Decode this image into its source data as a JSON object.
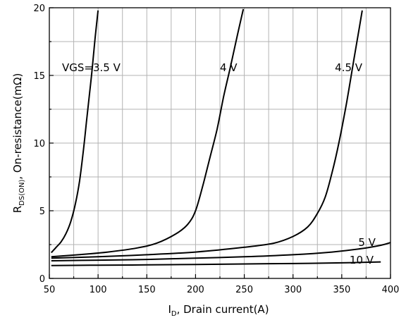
{
  "chart_data": {
    "type": "line",
    "xlabel_main": "I",
    "xlabel_sub": "D",
    "xlabel_rest": ", Drain current(A)",
    "ylabel_main": "R",
    "ylabel_sub": "DS(ON)",
    "ylabel_rest": ", On-resistance(mΩ)",
    "xlim": [
      50,
      400
    ],
    "ylim": [
      0,
      20
    ],
    "xticks": [
      50,
      100,
      150,
      200,
      250,
      300,
      350,
      400
    ],
    "yticks": [
      0,
      5,
      10,
      15,
      20
    ],
    "grid": true,
    "series": [
      {
        "name": "VGS=3.5 V",
        "x": [
          52,
          57,
          62,
          67,
          72,
          77,
          81,
          85,
          88,
          91,
          94,
          97,
          100
        ],
        "y": [
          1.9,
          2.3,
          2.7,
          3.3,
          4.2,
          5.6,
          7.2,
          9.5,
          11.5,
          13.5,
          15.5,
          17.8,
          19.8
        ]
      },
      {
        "name": "4 V",
        "x": [
          52,
          80,
          110,
          140,
          160,
          180,
          192,
          200,
          208,
          215,
          222,
          229,
          236,
          243,
          249
        ],
        "y": [
          1.6,
          1.75,
          1.95,
          2.25,
          2.6,
          3.3,
          4.0,
          5.0,
          7.0,
          9.0,
          11.0,
          13.5,
          15.7,
          18.0,
          19.9
        ]
      },
      {
        "name": "4.5 V",
        "x": [
          52,
          100,
          150,
          200,
          250,
          280,
          300,
          315,
          325,
          333,
          340,
          347,
          355,
          362,
          368,
          371
        ],
        "y": [
          1.5,
          1.6,
          1.75,
          1.95,
          2.3,
          2.6,
          3.1,
          3.8,
          4.8,
          6.0,
          7.8,
          10.0,
          13.0,
          16.0,
          18.5,
          19.8
        ]
      },
      {
        "name": "5 V",
        "x": [
          52,
          100,
          150,
          200,
          250,
          300,
          340,
          370,
          390,
          400
        ],
        "y": [
          1.3,
          1.35,
          1.4,
          1.5,
          1.6,
          1.75,
          1.95,
          2.2,
          2.45,
          2.65
        ]
      },
      {
        "name": "10 V",
        "x": [
          52,
          100,
          150,
          200,
          250,
          300,
          350,
          390
        ],
        "y": [
          0.95,
          0.98,
          1.0,
          1.03,
          1.07,
          1.1,
          1.15,
          1.22
        ]
      }
    ],
    "labels": [
      {
        "text": "VGS=3.5 V",
        "x": 63,
        "y": 15.3
      },
      {
        "text": "4 V",
        "x": 225,
        "y": 15.3
      },
      {
        "text": "4.5 V",
        "x": 343,
        "y": 15.3
      },
      {
        "text": "5 V",
        "x": 367,
        "y": 2.4
      },
      {
        "text": "10 V",
        "x": 358,
        "y": 1.1
      }
    ]
  }
}
